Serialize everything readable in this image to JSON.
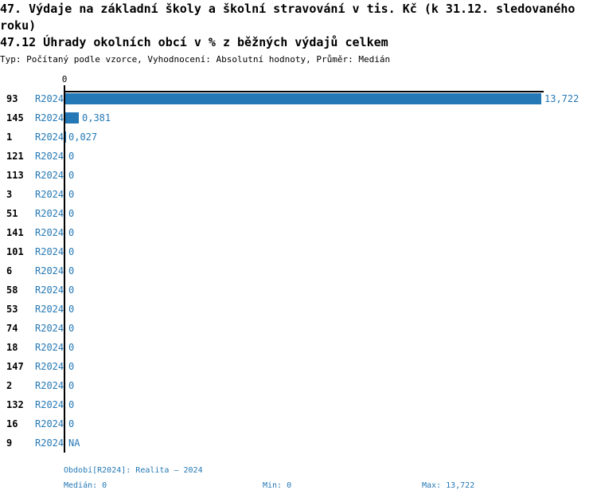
{
  "header": {
    "title": "47. Výdaje na základní školy a školní stravování v tis. Kč (k 31.12. sledovaného roku)",
    "subtitle": "47.12 Úhrady okolních obcí v % z běžných výdajů celkem",
    "meta": "Typ: Počítaný podle vzorce, Vyhodnocení: Absolutní hodnoty, Průměr: Medián"
  },
  "colors": {
    "accent": "#2478b5",
    "axis": "#000000",
    "text": "#000000"
  },
  "chart_data": {
    "type": "bar",
    "orientation": "horizontal",
    "origin_tick": "0",
    "xlim": [
      0,
      14
    ],
    "max_value": 13.722,
    "grid": false,
    "legend": false,
    "rows": [
      {
        "label": "93",
        "period": "R2024",
        "value": 13.722,
        "display": "13,722"
      },
      {
        "label": "145",
        "period": "R2024",
        "value": 0.381,
        "display": "0,381"
      },
      {
        "label": "1",
        "period": "R2024",
        "value": 0.027,
        "display": "0,027"
      },
      {
        "label": "121",
        "period": "R2024",
        "value": 0,
        "display": "0"
      },
      {
        "label": "113",
        "period": "R2024",
        "value": 0,
        "display": "0"
      },
      {
        "label": "3",
        "period": "R2024",
        "value": 0,
        "display": "0"
      },
      {
        "label": "51",
        "period": "R2024",
        "value": 0,
        "display": "0"
      },
      {
        "label": "141",
        "period": "R2024",
        "value": 0,
        "display": "0"
      },
      {
        "label": "101",
        "period": "R2024",
        "value": 0,
        "display": "0"
      },
      {
        "label": "6",
        "period": "R2024",
        "value": 0,
        "display": "0"
      },
      {
        "label": "58",
        "period": "R2024",
        "value": 0,
        "display": "0"
      },
      {
        "label": "53",
        "period": "R2024",
        "value": 0,
        "display": "0"
      },
      {
        "label": "74",
        "period": "R2024",
        "value": 0,
        "display": "0"
      },
      {
        "label": "18",
        "period": "R2024",
        "value": 0,
        "display": "0"
      },
      {
        "label": "147",
        "period": "R2024",
        "value": 0,
        "display": "0"
      },
      {
        "label": "2",
        "period": "R2024",
        "value": 0,
        "display": "0"
      },
      {
        "label": "132",
        "period": "R2024",
        "value": 0,
        "display": "0"
      },
      {
        "label": "16",
        "period": "R2024",
        "value": 0,
        "display": "0"
      },
      {
        "label": "9",
        "period": "R2024",
        "value": null,
        "display": "NA"
      }
    ]
  },
  "footer": {
    "period_info": "Období[R2024]: Realita – 2024",
    "median": "Medián: 0",
    "min": "Min: 0",
    "max": "Max: 13,722"
  }
}
